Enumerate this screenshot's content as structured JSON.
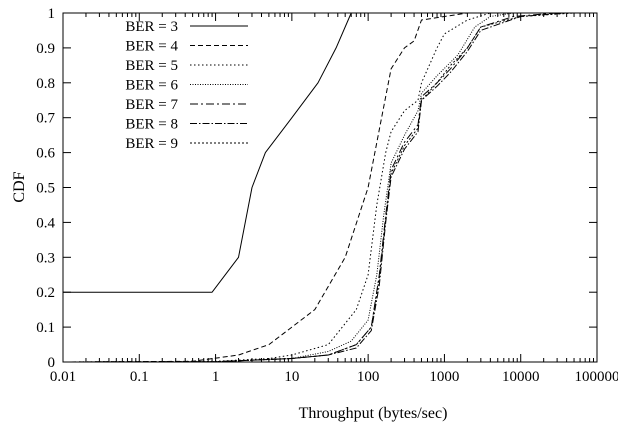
{
  "chart_data": {
    "type": "line",
    "xlabel": "Throughput (bytes/sec)",
    "ylabel": "CDF",
    "x_scale": "log",
    "xlim": [
      0.01,
      100000
    ],
    "ylim": [
      0,
      1
    ],
    "x_ticks": [
      0.01,
      0.1,
      1,
      10,
      100,
      1000,
      10000,
      100000
    ],
    "x_tick_labels": [
      "0.01",
      "0.1",
      "1",
      "10",
      "100",
      "1000",
      "10000",
      "100000"
    ],
    "y_ticks": [
      0,
      0.1,
      0.2,
      0.3,
      0.4,
      0.5,
      0.6,
      0.7,
      0.8,
      0.9,
      1
    ],
    "y_tick_labels": [
      "0",
      "0.1",
      "0.2",
      "0.3",
      "0.4",
      "0.5",
      "0.6",
      "0.7",
      "0.8",
      "0.9",
      "1"
    ],
    "grid": false,
    "legend_position": "top-left",
    "series": [
      {
        "name": "BER = 3",
        "dash": "",
        "x": [
          0.01,
          0.9,
          2,
          3,
          4.5,
          10,
          22,
          38,
          60,
          100000
        ],
        "y": [
          0.2,
          0.2,
          0.3,
          0.5,
          0.6,
          0.7,
          0.8,
          0.9,
          1.0,
          1.0
        ]
      },
      {
        "name": "BER = 4",
        "dash": "5,3",
        "x": [
          0.01,
          0.5,
          2,
          5,
          10,
          20,
          50,
          100,
          150,
          200,
          300,
          400,
          500,
          1000,
          2000,
          100000
        ],
        "y": [
          0,
          0.002,
          0.02,
          0.05,
          0.1,
          0.15,
          0.3,
          0.5,
          0.7,
          0.84,
          0.9,
          0.92,
          0.98,
          0.99,
          1.0,
          1.0
        ]
      },
      {
        "name": "BER = 5",
        "dash": "1.5,2.5",
        "x": [
          0.01,
          1,
          5,
          10,
          30,
          70,
          100,
          130,
          170,
          200,
          300,
          450,
          500,
          800,
          1000,
          2000,
          4000,
          100000
        ],
        "y": [
          0,
          0.002,
          0.01,
          0.02,
          0.05,
          0.15,
          0.25,
          0.45,
          0.6,
          0.66,
          0.72,
          0.75,
          0.8,
          0.9,
          0.94,
          0.98,
          1.0,
          1.0
        ]
      },
      {
        "name": "BER = 6",
        "dash": "1,1.5",
        "x": [
          0.01,
          1,
          10,
          30,
          60,
          100,
          130,
          160,
          200,
          300,
          450,
          500,
          800,
          1500,
          2500,
          4000,
          8000,
          100000
        ],
        "y": [
          0,
          0.001,
          0.01,
          0.03,
          0.06,
          0.12,
          0.25,
          0.42,
          0.57,
          0.65,
          0.72,
          0.77,
          0.82,
          0.88,
          0.96,
          0.99,
          1.0,
          1.0
        ]
      },
      {
        "name": "BER = 7",
        "dash": "8,3,2,3",
        "x": [
          0.01,
          1,
          10,
          30,
          70,
          110,
          140,
          170,
          200,
          300,
          450,
          500,
          800,
          1200,
          2000,
          3000,
          8000,
          30000,
          100000
        ],
        "y": [
          0,
          0.001,
          0.01,
          0.02,
          0.05,
          0.1,
          0.25,
          0.42,
          0.55,
          0.63,
          0.68,
          0.76,
          0.8,
          0.84,
          0.9,
          0.96,
          0.99,
          1.0,
          1.0
        ]
      },
      {
        "name": "BER = 8",
        "dash": "7,2,1.5,2",
        "x": [
          0.01,
          1,
          10,
          30,
          70,
          110,
          140,
          170,
          200,
          300,
          450,
          500,
          800,
          1200,
          2000,
          3000,
          10000,
          40000,
          100000
        ],
        "y": [
          0,
          0.001,
          0.01,
          0.02,
          0.04,
          0.09,
          0.22,
          0.4,
          0.53,
          0.61,
          0.66,
          0.75,
          0.79,
          0.83,
          0.89,
          0.95,
          0.99,
          1.0,
          1.0
        ]
      },
      {
        "name": "BER = 9",
        "dash": "2,2",
        "x": [
          0.01,
          1,
          10,
          30,
          70,
          110,
          140,
          170,
          200,
          300,
          450,
          500,
          800,
          1200,
          2000,
          3000,
          10000,
          50000,
          100000
        ],
        "y": [
          0,
          0.001,
          0.01,
          0.02,
          0.05,
          0.1,
          0.24,
          0.41,
          0.54,
          0.62,
          0.67,
          0.75,
          0.8,
          0.85,
          0.9,
          0.96,
          0.99,
          1.0,
          1.0
        ]
      }
    ]
  }
}
